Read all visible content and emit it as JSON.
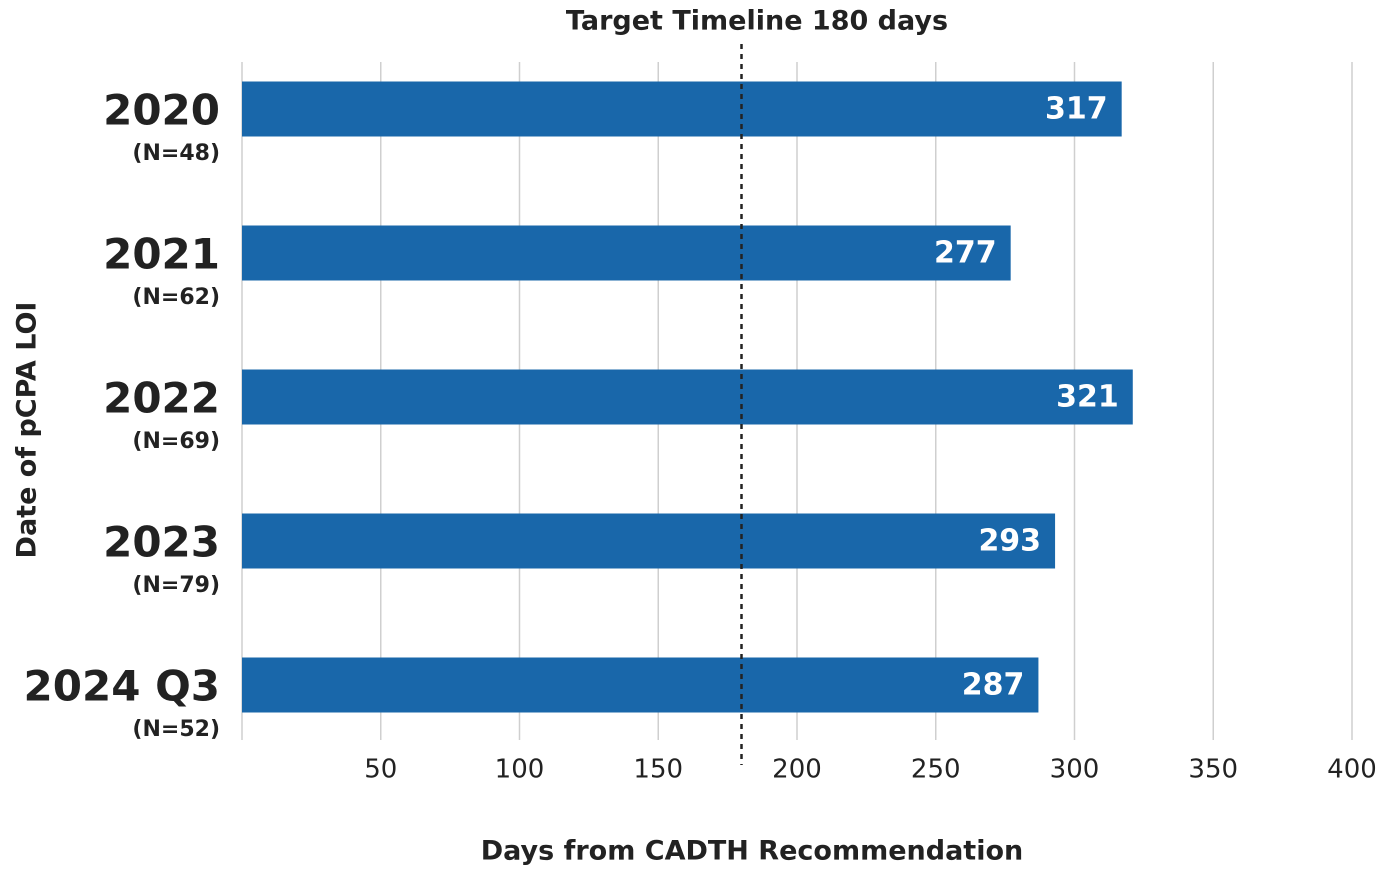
{
  "chart_data": {
    "type": "bar",
    "orientation": "horizontal",
    "annotation": "Target Timeline 180 days",
    "target": 180,
    "xlabel": "Days from CADTH Recommendation",
    "ylabel": "Date of pCPA LOI",
    "categories": [
      "2020",
      "2021",
      "2022",
      "2023",
      "2024 Q3"
    ],
    "sublabels": [
      "(N=48)",
      "(N=62)",
      "(N=69)",
      "(N=79)",
      "(N=52)"
    ],
    "values": [
      317,
      277,
      321,
      293,
      287
    ],
    "color": "#1967aa",
    "xlim": [
      0,
      400
    ],
    "xticks": [
      50,
      100,
      150,
      200,
      250,
      300,
      350,
      400
    ],
    "grid": true
  }
}
